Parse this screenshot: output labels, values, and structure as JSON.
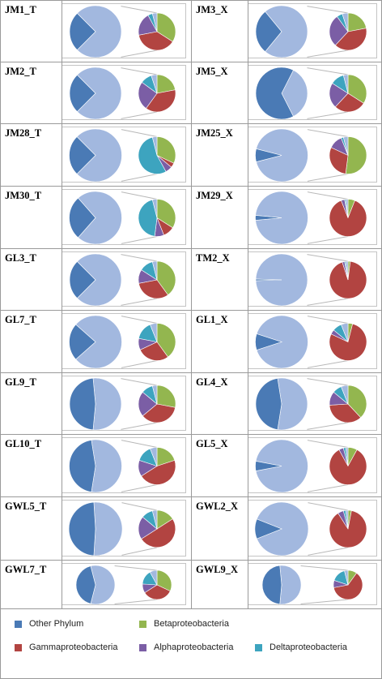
{
  "colors": {
    "Other Phylum": "#4a7ab5",
    "Other Phylum (expanded)": "#a2b8df",
    "Betaproteobacteria": "#93b64f",
    "Gammaproteobacteria": "#b24441",
    "Alphaproteobacteria": "#7b5ea5",
    "Deltaproteobacteria": "#3da4bf",
    "grid": "#9a9a9a",
    "connector": "#b8b8b8"
  },
  "legend": {
    "items": [
      {
        "label": "Other Phylum",
        "key": "Other Phylum"
      },
      {
        "label": "Betaproteobacteria",
        "key": "Betaproteobacteria"
      },
      {
        "label": "Gammaproteobacteria",
        "key": "Gammaproteobacteria"
      },
      {
        "label": "Alphaproteobacteria",
        "key": "Alphaproteobacteria"
      },
      {
        "label": "Deltaproteobacteria",
        "key": "Deltaproteobacteria"
      }
    ]
  },
  "chart_data": [
    {
      "type": "pie",
      "title": "JM1_T",
      "main_other_fraction": 0.25,
      "breakdown": {
        "Betaproteobacteria": 0.34,
        "Gammaproteobacteria": 0.38,
        "Alphaproteobacteria": 0.2,
        "Deltaproteobacteria": 0.04,
        "Other": 0.04
      }
    },
    {
      "type": "pie",
      "title": "JM3_X",
      "main_other_fraction": 0.28,
      "breakdown": {
        "Betaproteobacteria": 0.22,
        "Gammaproteobacteria": 0.4,
        "Alphaproteobacteria": 0.28,
        "Deltaproteobacteria": 0.05,
        "Other": 0.05
      }
    },
    {
      "type": "pie",
      "title": "JM2_T",
      "main_other_fraction": 0.25,
      "breakdown": {
        "Betaproteobacteria": 0.22,
        "Gammaproteobacteria": 0.38,
        "Alphaproteobacteria": 0.25,
        "Deltaproteobacteria": 0.1,
        "Other": 0.05
      }
    },
    {
      "type": "pie",
      "title": "JM5_X",
      "main_other_fraction": 0.65,
      "breakdown": {
        "Betaproteobacteria": 0.34,
        "Gammaproteobacteria": 0.28,
        "Alphaproteobacteria": 0.22,
        "Deltaproteobacteria": 0.12,
        "Other": 0.04
      }
    },
    {
      "type": "pie",
      "title": "JM28_T",
      "main_other_fraction": 0.25,
      "breakdown": {
        "Betaproteobacteria": 0.32,
        "Gammaproteobacteria": 0.04,
        "Alphaproteobacteria": 0.06,
        "Deltaproteobacteria": 0.54,
        "Other": 0.04
      }
    },
    {
      "type": "pie",
      "title": "JM25_X",
      "main_other_fraction": 0.08,
      "breakdown": {
        "Betaproteobacteria": 0.52,
        "Gammaproteobacteria": 0.3,
        "Alphaproteobacteria": 0.12,
        "Deltaproteobacteria": 0.02,
        "Other": 0.04
      }
    },
    {
      "type": "pie",
      "title": "JM30_T",
      "main_other_fraction": 0.27,
      "breakdown": {
        "Betaproteobacteria": 0.34,
        "Gammaproteobacteria": 0.1,
        "Alphaproteobacteria": 0.08,
        "Deltaproteobacteria": 0.44,
        "Other": 0.04
      }
    },
    {
      "type": "pie",
      "title": "JM29_X",
      "main_other_fraction": 0.03,
      "breakdown": {
        "Betaproteobacteria": 0.06,
        "Gammaproteobacteria": 0.88,
        "Alphaproteobacteria": 0.03,
        "Deltaproteobacteria": 0.01,
        "Other": 0.02
      }
    },
    {
      "type": "pie",
      "title": "GL3_T",
      "main_other_fraction": 0.25,
      "breakdown": {
        "Betaproteobacteria": 0.4,
        "Gammaproteobacteria": 0.32,
        "Alphaproteobacteria": 0.12,
        "Deltaproteobacteria": 0.12,
        "Other": 0.04
      }
    },
    {
      "type": "pie",
      "title": "TM2_X",
      "main_other_fraction": 0.01,
      "breakdown": {
        "Betaproteobacteria": 0.02,
        "Gammaproteobacteria": 0.93,
        "Alphaproteobacteria": 0.02,
        "Deltaproteobacteria": 0.01,
        "Other": 0.02
      }
    },
    {
      "type": "pie",
      "title": "GL7_T",
      "main_other_fraction": 0.23,
      "breakdown": {
        "Betaproteobacteria": 0.4,
        "Gammaproteobacteria": 0.28,
        "Alphaproteobacteria": 0.1,
        "Deltaproteobacteria": 0.16,
        "Other": 0.06
      }
    },
    {
      "type": "pie",
      "title": "GL1_X",
      "main_other_fraction": 0.1,
      "breakdown": {
        "Betaproteobacteria": 0.04,
        "Gammaproteobacteria": 0.78,
        "Alphaproteobacteria": 0.04,
        "Deltaproteobacteria": 0.08,
        "Other": 0.06
      }
    },
    {
      "type": "pie",
      "title": "GL9_T",
      "main_other_fraction": 0.47,
      "breakdown": {
        "Betaproteobacteria": 0.28,
        "Gammaproteobacteria": 0.36,
        "Alphaproteobacteria": 0.22,
        "Deltaproteobacteria": 0.1,
        "Other": 0.04
      }
    },
    {
      "type": "pie",
      "title": "GL4_X",
      "main_other_fraction": 0.45,
      "breakdown": {
        "Betaproteobacteria": 0.38,
        "Gammaproteobacteria": 0.36,
        "Alphaproteobacteria": 0.12,
        "Deltaproteobacteria": 0.08,
        "Other": 0.06
      }
    },
    {
      "type": "pie",
      "title": "GL10_T",
      "main_other_fraction": 0.45,
      "breakdown": {
        "Betaproteobacteria": 0.2,
        "Gammaproteobacteria": 0.46,
        "Alphaproteobacteria": 0.14,
        "Deltaproteobacteria": 0.14,
        "Other": 0.06
      }
    },
    {
      "type": "pie",
      "title": "GL5_X",
      "main_other_fraction": 0.06,
      "breakdown": {
        "Betaproteobacteria": 0.08,
        "Gammaproteobacteria": 0.84,
        "Alphaproteobacteria": 0.04,
        "Deltaproteobacteria": 0.02,
        "Other": 0.02
      }
    },
    {
      "type": "pie",
      "title": "GWL5_T",
      "main_other_fraction": 0.48,
      "breakdown": {
        "Betaproteobacteria": 0.16,
        "Gammaproteobacteria": 0.5,
        "Alphaproteobacteria": 0.2,
        "Deltaproteobacteria": 0.1,
        "Other": 0.04
      }
    },
    {
      "type": "pie",
      "title": "GWL2_X",
      "main_other_fraction": 0.12,
      "breakdown": {
        "Betaproteobacteria": 0.03,
        "Gammaproteobacteria": 0.88,
        "Alphaproteobacteria": 0.05,
        "Deltaproteobacteria": 0.02,
        "Other": 0.02
      }
    },
    {
      "type": "pie",
      "title": "GWL7_T",
      "main_other_fraction": 0.42,
      "breakdown": {
        "Betaproteobacteria": 0.32,
        "Gammaproteobacteria": 0.34,
        "Alphaproteobacteria": 0.1,
        "Deltaproteobacteria": 0.16,
        "Other": 0.08
      }
    },
    {
      "type": "pie",
      "title": "GWL9_X",
      "main_other_fraction": 0.47,
      "breakdown": {
        "Betaproteobacteria": 0.1,
        "Gammaproteobacteria": 0.62,
        "Alphaproteobacteria": 0.08,
        "Deltaproteobacteria": 0.16,
        "Other": 0.04
      }
    }
  ]
}
